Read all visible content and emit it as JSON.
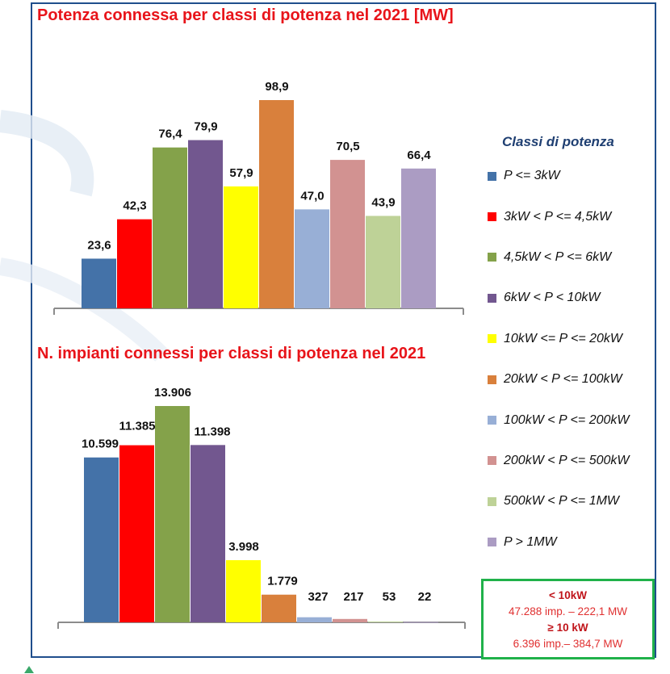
{
  "legend": {
    "title": "Classi di potenza"
  },
  "colors": [
    "#4472a8",
    "#ff0000",
    "#84a24a",
    "#72578f",
    "#ffff00",
    "#d9803c",
    "#98afd6",
    "#d29291",
    "#bed297",
    "#ab9cc3"
  ],
  "chart_data": [
    {
      "type": "bar",
      "title": "Potenza connessa per classi di potenza nel 2021 [MW]",
      "categories": [
        "P <= 3kW",
        "3kW < P <= 4,5kW",
        "4,5kW < P <= 6kW",
        "6kW < P < 10kW",
        "10kW <= P <= 20kW",
        "20kW < P <= 100kW",
        "100kW < P <= 200kW",
        "200kW < P <= 500kW",
        "500kW < P <= 1MW",
        "P > 1MW"
      ],
      "values": [
        23.6,
        42.3,
        76.4,
        79.9,
        57.9,
        98.9,
        47.0,
        70.5,
        43.9,
        66.4
      ],
      "data_labels": [
        "23,6",
        "42,3",
        "76,4",
        "79,9",
        "57,9",
        "98,9",
        "47,0",
        "70,5",
        "43,9",
        "66,4"
      ],
      "ylim": [
        0,
        98.9
      ],
      "grid": false,
      "legend": "right"
    },
    {
      "type": "bar",
      "title": "N. impianti connessi per classi di potenza nel 2021",
      "categories": [
        "P <= 3kW",
        "3kW < P <= 4,5kW",
        "4,5kW < P <= 6kW",
        "6kW < P < 10kW",
        "10kW <= P <= 20kW",
        "20kW < P <= 100kW",
        "100kW < P <= 200kW",
        "200kW < P <= 500kW",
        "500kW < P <= 1MW",
        "P > 1MW"
      ],
      "values": [
        10599,
        11385,
        13906,
        11398,
        3998,
        1779,
        327,
        217,
        53,
        22
      ],
      "data_labels": [
        "10.599",
        "11.385",
        "13.906",
        "11.398",
        "3.998",
        "1.779",
        "327",
        "217",
        "53",
        "22"
      ],
      "ylim": [
        0,
        13906
      ],
      "grid": false,
      "legend": "right"
    }
  ],
  "summary": {
    "small_label": "< 10kW",
    "small_text": "47.288 imp. – 222,1 MW",
    "large_label": "≥ 10 kW",
    "large_text": "6.396 imp.– 384,7 MW"
  }
}
